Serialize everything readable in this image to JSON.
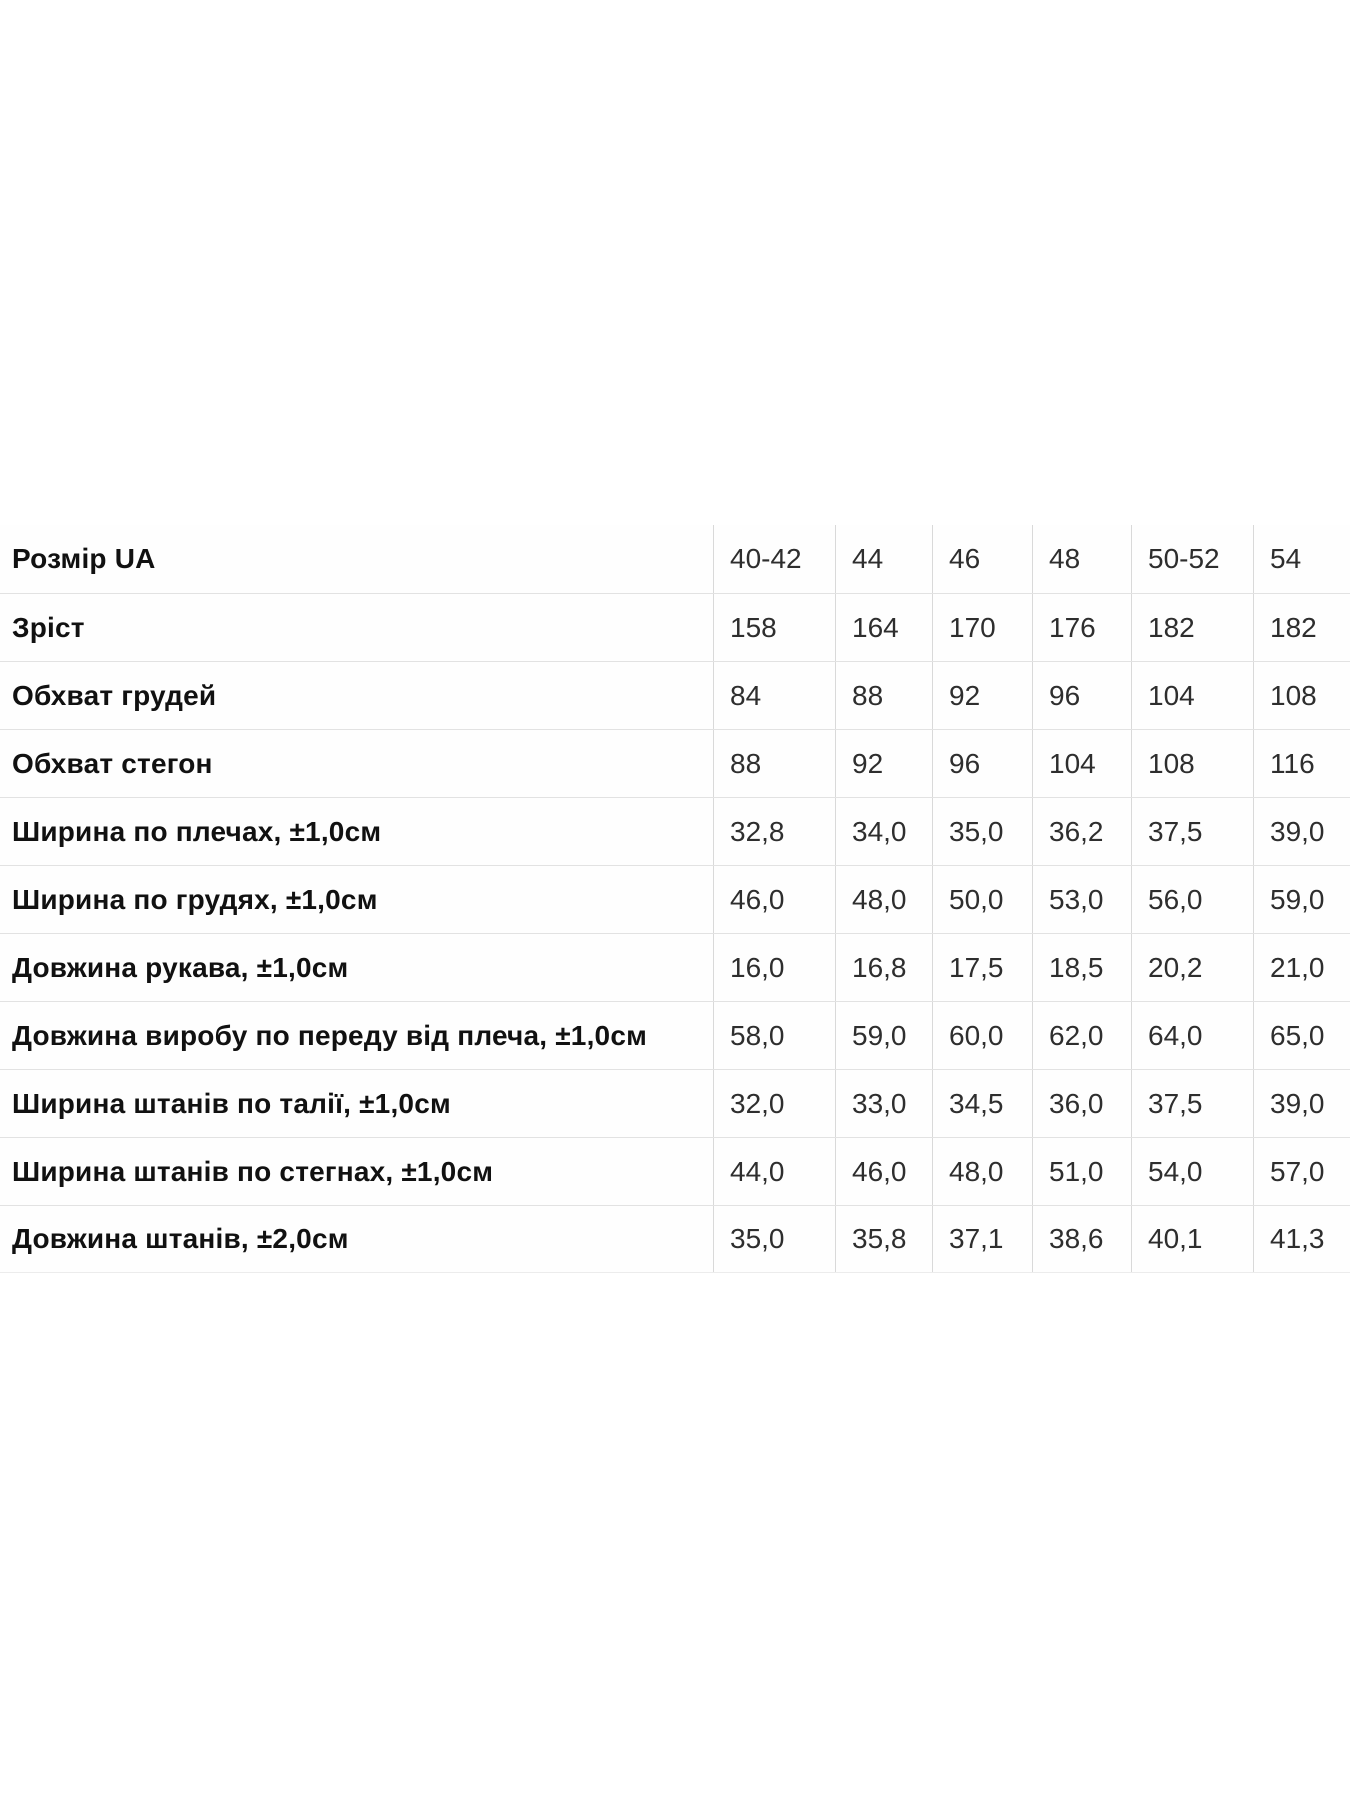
{
  "size_chart": {
    "columns_count": 6,
    "rows": [
      {
        "label": "Розмір UA",
        "values": [
          "40-42",
          "44",
          "46",
          "48",
          "50-52",
          "54"
        ]
      },
      {
        "label": "Зріст",
        "values": [
          "158",
          "164",
          "170",
          "176",
          "182",
          "182"
        ]
      },
      {
        "label": "Обхват грудей",
        "values": [
          "84",
          "88",
          "92",
          "96",
          "104",
          "108"
        ]
      },
      {
        "label": "Обхват стегон",
        "values": [
          "88",
          "92",
          "96",
          "104",
          "108",
          "116"
        ]
      },
      {
        "label": "Ширина по плечах, ±1,0см",
        "values": [
          "32,8",
          "34,0",
          "35,0",
          "36,2",
          "37,5",
          "39,0"
        ]
      },
      {
        "label": "Ширина по грудях, ±1,0см",
        "values": [
          "46,0",
          "48,0",
          "50,0",
          "53,0",
          "56,0",
          "59,0"
        ]
      },
      {
        "label": "Довжина рукава, ±1,0см",
        "values": [
          "16,0",
          "16,8",
          "17,5",
          "18,5",
          "20,2",
          "21,0"
        ]
      },
      {
        "label": "Довжина виробу по переду від плеча, ±1,0см",
        "values": [
          "58,0",
          "59,0",
          "60,0",
          "62,0",
          "64,0",
          "65,0"
        ]
      },
      {
        "label": "Ширина штанів по талії, ±1,0см",
        "values": [
          "32,0",
          "33,0",
          "34,5",
          "36,0",
          "37,5",
          "39,0"
        ]
      },
      {
        "label": "Ширина штанів по стегнах, ±1,0см",
        "values": [
          "44,0",
          "46,0",
          "48,0",
          "51,0",
          "54,0",
          "57,0"
        ]
      },
      {
        "label": "Довжина штанів, ±2,0см",
        "values": [
          "35,0",
          "35,8",
          "37,1",
          "38,6",
          "40,1",
          "41,3"
        ]
      }
    ],
    "colors": {
      "row_line": "#e2e2e2",
      "column_line": "#d9d9d9",
      "label_text": "#111111",
      "value_text": "#2e2e2e",
      "background": "#ffffff"
    }
  }
}
